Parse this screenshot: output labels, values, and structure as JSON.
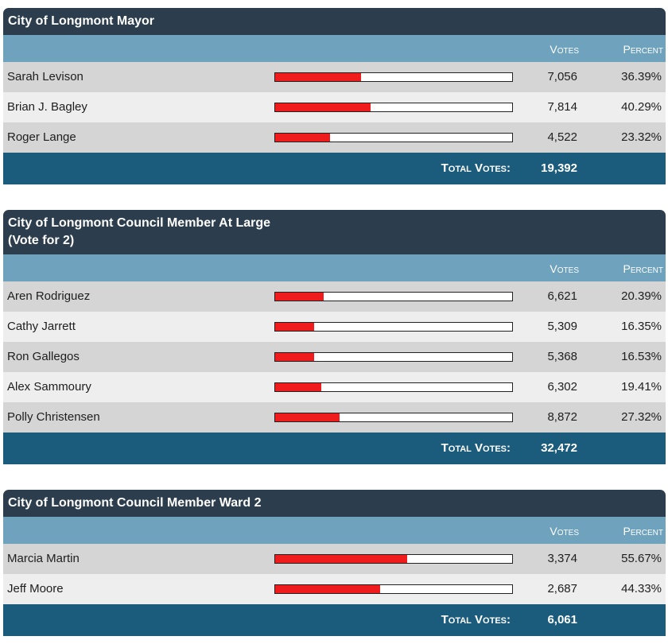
{
  "labels": {
    "votes_header": "Votes",
    "percent_header": "Percent",
    "total_label": "Total Votes:"
  },
  "colors": {
    "title_bg": "#2c3e4d",
    "header_bg": "#6fa2bd",
    "total_bg": "#1b5b7b",
    "bar_fill": "#ee1c1c"
  },
  "races": [
    {
      "title": "City of Longmont Mayor",
      "candidates": [
        {
          "name": "Sarah Levison",
          "votes": "7,056",
          "percent": "36.39%",
          "share": 0.3639
        },
        {
          "name": "Brian J. Bagley",
          "votes": "7,814",
          "percent": "40.29%",
          "share": 0.4029
        },
        {
          "name": "Roger Lange",
          "votes": "4,522",
          "percent": "23.32%",
          "share": 0.2332
        }
      ],
      "total_votes": "19,392"
    },
    {
      "title": "City of Longmont Council Member At Large\n(Vote for 2)",
      "candidates": [
        {
          "name": "Aren Rodriguez",
          "votes": "6,621",
          "percent": "20.39%",
          "share": 0.2039
        },
        {
          "name": "Cathy Jarrett",
          "votes": "5,309",
          "percent": "16.35%",
          "share": 0.1635
        },
        {
          "name": "Ron Gallegos",
          "votes": "5,368",
          "percent": "16.53%",
          "share": 0.1653
        },
        {
          "name": "Alex Sammoury",
          "votes": "6,302",
          "percent": "19.41%",
          "share": 0.1941
        },
        {
          "name": "Polly Christensen",
          "votes": "8,872",
          "percent": "27.32%",
          "share": 0.2732
        }
      ],
      "total_votes": "32,472"
    },
    {
      "title": "City of Longmont Council Member Ward 2",
      "candidates": [
        {
          "name": "Marcia Martin",
          "votes": "3,374",
          "percent": "55.67%",
          "share": 0.5567
        },
        {
          "name": "Jeff Moore",
          "votes": "2,687",
          "percent": "44.33%",
          "share": 0.4433
        }
      ],
      "total_votes": "6,061"
    }
  ]
}
